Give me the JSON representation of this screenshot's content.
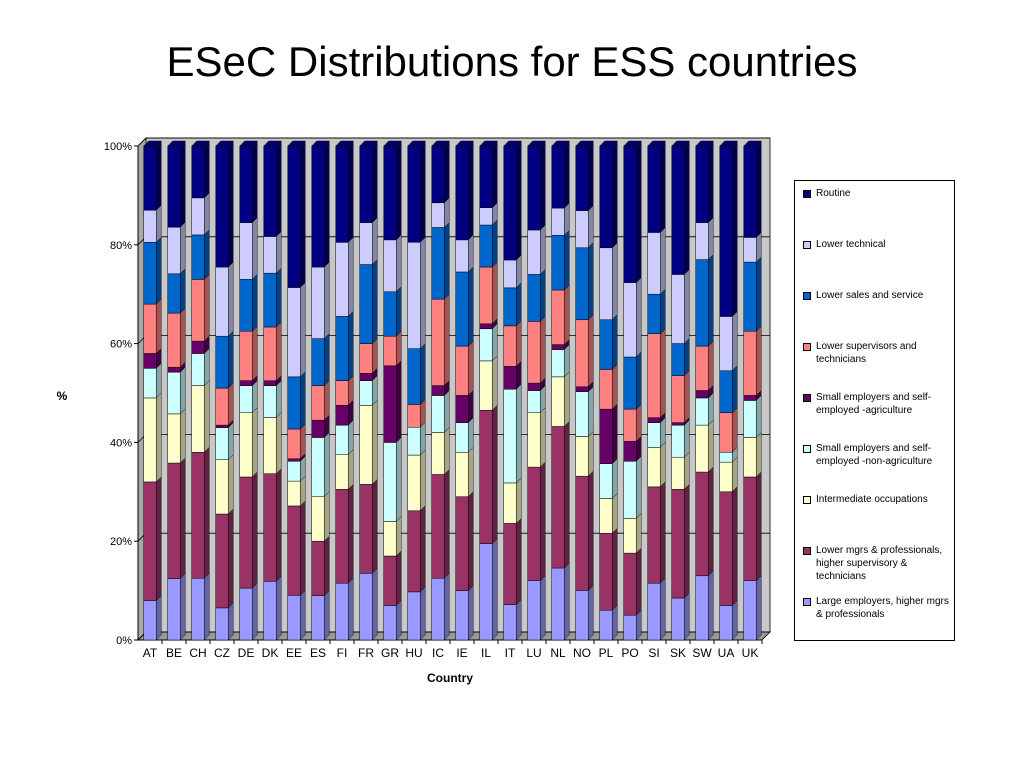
{
  "page": {
    "title": "ESeC Distributions for ESS countries"
  },
  "chart_data": {
    "type": "bar",
    "stacked": "percent",
    "title": "ESeC Distributions for ESS countries",
    "xlabel": "Country",
    "ylabel": "%",
    "ylim": [
      0,
      100
    ],
    "yticks": [
      "0%",
      "20%",
      "40%",
      "60%",
      "80%",
      "100%"
    ],
    "grid": true,
    "legend_position": "right",
    "categories": [
      "AT",
      "BE",
      "CH",
      "CZ",
      "DE",
      "DK",
      "EE",
      "ES",
      "FI",
      "FR",
      "GR",
      "HU",
      "IC",
      "IE",
      "IL",
      "IT",
      "LU",
      "NL",
      "NO",
      "PL",
      "PO",
      "SI",
      "SK",
      "SW",
      "UA",
      "UK"
    ],
    "series": [
      {
        "name": "Large employers, higher mgrs & professionals",
        "color": "#9999ff",
        "values": [
          8,
          12.5,
          12.5,
          6.5,
          10.5,
          12,
          9,
          9,
          11.5,
          13.5,
          7,
          9.5,
          12.5,
          10,
          19.5,
          7,
          12,
          14.5,
          10,
          6,
          5,
          11.5,
          8.5,
          13,
          7,
          12
        ]
      },
      {
        "name": "Lower mgrs & professionals, higher supervisory & technicians",
        "color": "#993366",
        "values": [
          24,
          23.5,
          25.5,
          19,
          22.5,
          22,
          18,
          11,
          19,
          18,
          10,
          16,
          21,
          19,
          27,
          16,
          23,
          28.5,
          23,
          15.5,
          12.5,
          19.5,
          22,
          21,
          23,
          21
        ]
      },
      {
        "name": "Intermediate occupations",
        "color": "#ffffcc",
        "values": [
          17,
          10,
          13.5,
          11,
          13,
          11.5,
          5,
          9,
          7,
          16,
          7,
          11,
          8.5,
          9,
          10,
          8,
          11,
          10,
          8,
          7,
          7,
          8,
          6.5,
          9.5,
          6,
          8
        ]
      },
      {
        "name": "Small employers and self-employed -non-agriculture",
        "color": "#ccffff",
        "values": [
          6,
          8.5,
          6.5,
          6.5,
          5.5,
          6.5,
          4,
          12,
          6,
          5,
          16,
          5.5,
          7.5,
          6,
          6.5,
          18.5,
          4.5,
          5.5,
          9,
          7,
          11.5,
          5,
          6.5,
          5.5,
          2,
          7.5
        ]
      },
      {
        "name": "Small employers and self-employed -agriculture",
        "color": "#660066",
        "values": [
          3,
          1,
          2.5,
          0.5,
          1,
          1,
          0.5,
          3.5,
          4,
          1.5,
          15.5,
          0,
          2,
          5.5,
          1,
          4.5,
          1.5,
          1,
          1,
          11,
          4,
          1,
          0.5,
          1.5,
          0,
          1
        ]
      },
      {
        "name": "Lower supervisors and technicians",
        "color": "#ff8080",
        "values": [
          10,
          11,
          12.5,
          7.5,
          10,
          11,
          6,
          7,
          5,
          6,
          6,
          4.5,
          17.5,
          10,
          11.5,
          8,
          12.5,
          11,
          13.5,
          8,
          6.5,
          17,
          9.5,
          9,
          8,
          13
        ]
      },
      {
        "name": "Lower sales and service",
        "color": "#0066cc",
        "values": [
          12.5,
          8,
          9,
          10.5,
          10.5,
          11,
          10.5,
          9.5,
          13,
          16,
          9,
          11,
          14.5,
          15,
          8.5,
          7.5,
          9.5,
          11,
          14.5,
          10,
          10.5,
          8,
          6.5,
          17.5,
          8.5,
          14
        ]
      },
      {
        "name": "Lower technical",
        "color": "#ccccff",
        "values": [
          6.5,
          9.5,
          7.5,
          14,
          11.5,
          7.5,
          18,
          14.5,
          15,
          8.5,
          10.5,
          21,
          5,
          6.5,
          3.5,
          5.5,
          9,
          5.5,
          7.5,
          14.5,
          15,
          12.5,
          14,
          7.5,
          11,
          5
        ]
      },
      {
        "name": "Routine",
        "color": "#000080",
        "values": [
          13,
          16.5,
          10.5,
          24.5,
          15.5,
          18.5,
          28.5,
          24.5,
          19.5,
          15.5,
          19,
          19,
          11.5,
          19,
          12.5,
          22.5,
          17,
          12.5,
          13,
          20.5,
          27.5,
          17.5,
          26,
          15.5,
          34.5,
          18.5
        ]
      }
    ]
  }
}
